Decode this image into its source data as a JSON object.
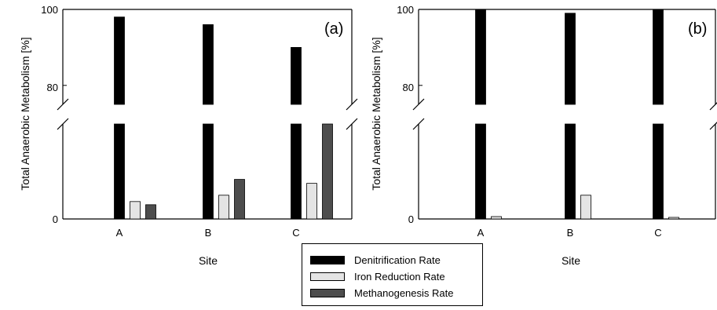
{
  "colors": {
    "denitrification": "#000000",
    "iron_reduction": "#e4e4e4",
    "methanogenesis": "#4d4d4d"
  },
  "chart_data": [
    {
      "type": "bar",
      "panel_label": "(a)",
      "xlabel": "Site",
      "ylabel": "Total Anaerobic Metabolism [%]",
      "categories": [
        "A",
        "B",
        "C"
      ],
      "y_axis_break": true,
      "upper_ylim": [
        75,
        100
      ],
      "upper_ticks": [
        "80",
        "100"
      ],
      "lower_ticks": [
        "0"
      ],
      "lower_ylim": [
        0,
        12
      ],
      "series": [
        {
          "name": "Denitrification Rate",
          "values": [
            98,
            96,
            90
          ]
        },
        {
          "name": "Iron Reduction Rate",
          "values": [
            2.2,
            3.0,
            4.5
          ]
        },
        {
          "name": "Methanogenesis Rate",
          "values": [
            1.8,
            5.0,
            12.0
          ]
        }
      ],
      "grid": false,
      "legend": "bottom-center"
    },
    {
      "type": "bar",
      "panel_label": "(b)",
      "xlabel": "Site",
      "ylabel": "Total Anaerobic Metabolism [%]",
      "categories": [
        "A",
        "B",
        "C"
      ],
      "y_axis_break": true,
      "upper_ylim": [
        75,
        100
      ],
      "upper_ticks": [
        "80",
        "100"
      ],
      "lower_ticks": [
        "0"
      ],
      "lower_ylim": [
        0,
        12
      ],
      "series": [
        {
          "name": "Denitrification Rate",
          "values": [
            100,
            99,
            100
          ]
        },
        {
          "name": "Iron Reduction Rate",
          "values": [
            0.3,
            3.0,
            0.2
          ]
        },
        {
          "name": "Methanogenesis Rate",
          "values": [
            0,
            0,
            0
          ]
        }
      ],
      "grid": false,
      "legend": "bottom-center"
    }
  ],
  "legend": {
    "items": [
      "Denitrification Rate",
      "Iron Reduction Rate",
      "Methanogenesis Rate"
    ]
  }
}
